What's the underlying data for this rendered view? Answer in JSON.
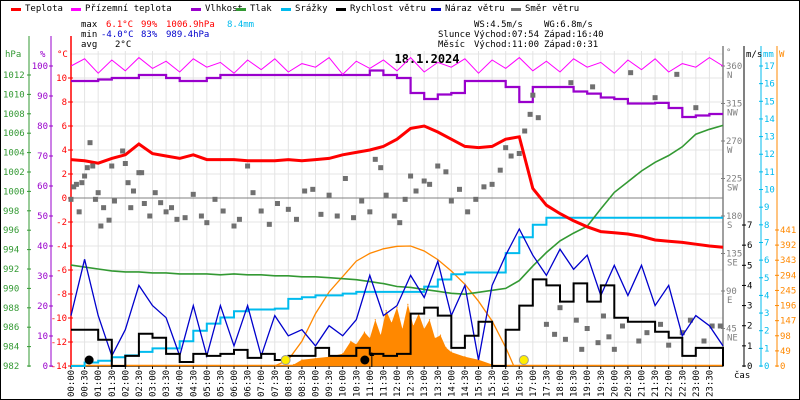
{
  "legend": [
    {
      "label": "Teplota",
      "color": "#ff0000"
    },
    {
      "label": "Přízemní teplota",
      "color": "#ff00ff"
    },
    {
      "label": "Vlhkost",
      "color": "#9900cc"
    },
    {
      "label": "Tlak",
      "color": "#339933"
    },
    {
      "label": "Srážky",
      "color": "#00bbee"
    },
    {
      "label": "Rychlost větru",
      "color": "#000000"
    },
    {
      "label": "Náraz větru",
      "color": "#0000cc"
    },
    {
      "label": "Směr větru",
      "color": "#707070"
    }
  ],
  "stats": {
    "max_label": "max",
    "min_label": "min",
    "avg_label": "avg",
    "max": {
      "temp": "6.1°C",
      "hum": "99%",
      "press": "1006.9hPa",
      "rain": "8.4mm"
    },
    "min": {
      "temp": "-4.0°C",
      "hum": "83%",
      "press": "989.4hPa"
    },
    "avg": {
      "temp": "2°C"
    }
  },
  "wind_stats": {
    "ws": "WS:4.5m/s",
    "wg": "WG:6.8m/s"
  },
  "sun": {
    "label": "Slunce",
    "rise": "Východ:07:54",
    "set": "Západ:16:40",
    "rise_h": 7.9,
    "set_h": 16.67
  },
  "moon": {
    "label": "Měsíc",
    "rise": "Východ:11:00",
    "set": "Západ:0:31",
    "rise_h": 11.0,
    "set_h": 0.52
  },
  "colors": {
    "temp": "#ff0000",
    "ground": "#ff00ff",
    "hum": "#9900cc",
    "press": "#339933",
    "rain": "#00bbee",
    "wind": "#000000",
    "gust": "#0000cc",
    "dir": "#707070",
    "solar": "#ff8800",
    "grid": "#e4e4e4"
  },
  "chart_data": {
    "type": "line",
    "title": "18.1.2024",
    "xlabel": "čas",
    "x_range_hours": [
      0,
      24
    ],
    "time_labels": [
      "00:00",
      "00:30",
      "01:00",
      "01:30",
      "02:00",
      "02:30",
      "03:00",
      "03:30",
      "04:00",
      "04:30",
      "05:00",
      "05:30",
      "06:00",
      "06:30",
      "07:00",
      "07:30",
      "08:00",
      "08:30",
      "09:00",
      "09:30",
      "10:00",
      "10:30",
      "11:00",
      "11:30",
      "12:00",
      "12:30",
      "13:00",
      "13:30",
      "14:00",
      "14:30",
      "15:00",
      "15:30",
      "16:00",
      "16:30",
      "17:00",
      "17:30",
      "18:00",
      "18:30",
      "19:00",
      "19:30",
      "20:00",
      "20:30",
      "21:00",
      "21:30",
      "22:00",
      "22:30",
      "23:00",
      "23:30"
    ],
    "axes": {
      "hpa": {
        "unit": "hPa",
        "range": [
          982,
          1012
        ],
        "ticks": [
          "982",
          "984",
          "986",
          "988",
          "990",
          "992",
          "994",
          "996",
          "998",
          "1000",
          "1002",
          "1004",
          "1006",
          "1008",
          "1010",
          "1012"
        ]
      },
      "pct": {
        "unit": "%",
        "range": [
          0,
          100
        ],
        "ticks": [
          "0",
          "10",
          "20",
          "30",
          "40",
          "50",
          "60",
          "70",
          "80",
          "90",
          "100"
        ]
      },
      "degc": {
        "unit": "°C",
        "range": [
          -14,
          10
        ],
        "ticks": [
          "-14",
          "-12",
          "-10",
          "-8",
          "-6",
          "-4",
          "-2",
          "0",
          "2",
          "4",
          "6",
          "8",
          "10"
        ]
      },
      "dir": {
        "unit": "°",
        "range": [
          0,
          360
        ],
        "ticks": [
          {
            "v": "45",
            "d": "NE"
          },
          {
            "v": "90",
            "d": "E"
          },
          {
            "v": "135",
            "d": "SE"
          },
          {
            "v": "180",
            "d": "S"
          },
          {
            "v": "225",
            "d": "SW"
          },
          {
            "v": "270",
            "d": "W"
          },
          {
            "v": "315",
            "d": "NW"
          },
          {
            "v": "360",
            "d": "N"
          }
        ]
      },
      "ms": {
        "unit": "m/s",
        "range": [
          0,
          7
        ],
        "ticks": [
          "0",
          "1",
          "2",
          "3",
          "4",
          "5",
          "6",
          "7"
        ]
      },
      "mm": {
        "unit": "mm",
        "range": [
          0,
          17
        ],
        "ticks": [
          "0",
          "1",
          "2",
          "3",
          "4",
          "5",
          "6",
          "7",
          "8",
          "9",
          "10",
          "11",
          "12",
          "13",
          "14",
          "15",
          "16",
          "17"
        ]
      },
      "w": {
        "unit": "W",
        "range": [
          0,
          441
        ],
        "ticks": [
          "0",
          "49",
          "98",
          "147",
          "196",
          "245",
          "294",
          "343",
          "392",
          "441"
        ]
      }
    },
    "x_step_hours": 0.5,
    "series": [
      {
        "name": "Teplota",
        "unit": "°C",
        "values": [
          3.2,
          3.1,
          2.9,
          3.3,
          3.6,
          4.5,
          3.7,
          3.5,
          3.3,
          3.6,
          3.2,
          3.2,
          3.2,
          3.1,
          3.1,
          3.1,
          3.2,
          3.1,
          3.2,
          3.3,
          3.6,
          3.8,
          4.0,
          4.3,
          4.9,
          5.8,
          6.0,
          5.5,
          4.9,
          4.3,
          4.2,
          4.3,
          4.9,
          5.1,
          0.8,
          -0.6,
          -1.3,
          -1.9,
          -2.4,
          -2.8,
          -2.9,
          -3.0,
          -3.2,
          -3.5,
          -3.6,
          -3.7,
          -3.85,
          -4.0,
          -4.1
        ]
      },
      {
        "name": "Přízemní teplota",
        "unit": "°C",
        "values": [
          11.0,
          11.6,
          10.4,
          11.5,
          10.6,
          11.7,
          10.8,
          11.4,
          10.5,
          11.6,
          10.9,
          11.3,
          10.4,
          11.5,
          10.7,
          11.6,
          10.5,
          11.2,
          10.9,
          11.7,
          10.3,
          11.4,
          10.8,
          11.5,
          10.6,
          11.7,
          10.5,
          11.3,
          10.9,
          11.6,
          10.4,
          11.5,
          10.8,
          11.7,
          10.6,
          11.4,
          10.5,
          11.6,
          10.9,
          11.3,
          10.4,
          11.5,
          10.7,
          11.6,
          10.5,
          11.2,
          10.9,
          11.7,
          11.0
        ]
      },
      {
        "name": "Vlhkost",
        "unit": "%",
        "values": [
          95,
          95,
          95.5,
          96,
          96,
          97,
          97,
          96,
          95,
          95,
          96,
          97,
          97,
          97,
          97,
          97,
          97,
          97,
          97,
          97,
          97,
          97,
          98.5,
          97,
          96,
          91,
          89,
          90.5,
          91,
          95,
          95,
          95,
          93,
          88,
          93,
          93,
          93,
          91.5,
          90.8,
          89.5,
          89,
          87.5,
          87.5,
          87.7,
          86,
          83,
          83.5,
          84,
          84
        ]
      },
      {
        "name": "Tlak",
        "unit": "hPa",
        "values": [
          992.4,
          992.2,
          992.0,
          991.8,
          991.7,
          991.7,
          991.6,
          991.6,
          991.5,
          991.5,
          991.5,
          991.4,
          991.5,
          991.4,
          991.4,
          991.3,
          991.3,
          991.2,
          991.2,
          991.1,
          991.0,
          990.9,
          990.7,
          990.5,
          990.2,
          990.1,
          989.9,
          989.7,
          989.5,
          989.4,
          989.6,
          989.8,
          990.0,
          990.8,
          992.3,
          993.7,
          994.9,
          995.7,
          996.4,
          998.2,
          999.9,
          1001.0,
          1002.1,
          1003.0,
          1003.7,
          1004.6,
          1005.9,
          1006.4,
          1006.8
        ]
      },
      {
        "name": "Srážky",
        "unit": "mm",
        "values": [
          0,
          0.2,
          0.3,
          0.5,
          0.6,
          0.8,
          1.0,
          1.0,
          1.4,
          2.0,
          2.4,
          2.75,
          3.1,
          3.2,
          3.2,
          3.25,
          3.8,
          3.9,
          4.0,
          4.0,
          4.1,
          4.2,
          4.2,
          4.2,
          4.2,
          4.2,
          4.5,
          4.9,
          5.2,
          5.3,
          5.3,
          5.3,
          6.4,
          7.3,
          8.0,
          8.4,
          8.4,
          8.4,
          8.4,
          8.4,
          8.4,
          8.4,
          8.4,
          8.4,
          8.4,
          8.4,
          8.4,
          8.4,
          8.4
        ]
      },
      {
        "name": "Rychlost větru",
        "unit": "m/s",
        "values": [
          1.8,
          1.8,
          1.3,
          0,
          0.5,
          1.6,
          1.4,
          0.6,
          0.2,
          0.6,
          0.5,
          0.6,
          0.8,
          0.4,
          0.6,
          0.3,
          0.5,
          0.5,
          0.9,
          0.5,
          0.5,
          0.9,
          0.6,
          0.5,
          0.6,
          2.6,
          2.9,
          2.5,
          0.9,
          1.5,
          2.2,
          0,
          1.8,
          3.0,
          4.3,
          4.0,
          3.2,
          4.1,
          3.2,
          4.0,
          2.4,
          2.2,
          2.2,
          1.7,
          1.4,
          0.5,
          0.9,
          0.9,
          0
        ]
      },
      {
        "name": "Náraz větru",
        "unit": "m/s",
        "values": [
          2.5,
          5.3,
          2.5,
          0.5,
          1.8,
          4.0,
          3.0,
          2.4,
          0.5,
          3.0,
          0.5,
          3.0,
          1.0,
          3.0,
          0.5,
          2.5,
          1.5,
          1.8,
          1.0,
          2.0,
          1.5,
          2.3,
          4.5,
          2.5,
          3.0,
          4.5,
          3.4,
          5.2,
          2.5,
          4.0,
          0.3,
          4.0,
          5.5,
          6.8,
          5.5,
          4.5,
          5.8,
          4.8,
          5.5,
          3.5,
          5.0,
          3.5,
          5.0,
          3.0,
          4.0,
          1.5,
          2.5,
          2.0,
          1.0
        ]
      }
    ],
    "solar_theoretical": {
      "unit": "W",
      "points": [
        [
          7.5,
          0
        ],
        [
          8,
          20
        ],
        [
          8.5,
          80
        ],
        [
          9,
          170
        ],
        [
          9.5,
          240
        ],
        [
          10,
          290
        ],
        [
          10.5,
          340
        ],
        [
          11,
          365
        ],
        [
          11.5,
          380
        ],
        [
          12,
          388
        ],
        [
          12.5,
          389
        ],
        [
          13,
          373
        ],
        [
          13.5,
          345
        ],
        [
          14,
          308
        ],
        [
          14.5,
          265
        ],
        [
          15,
          210
        ],
        [
          15.5,
          146
        ],
        [
          16,
          60
        ],
        [
          16.3,
          0
        ]
      ]
    },
    "solar_measured": {
      "unit": "W",
      "points": [
        [
          8,
          0
        ],
        [
          8.2,
          5
        ],
        [
          8.5,
          20
        ],
        [
          9,
          25
        ],
        [
          9.5,
          30
        ],
        [
          10,
          40
        ],
        [
          10.3,
          80
        ],
        [
          10.5,
          70
        ],
        [
          10.8,
          110
        ],
        [
          11,
          90
        ],
        [
          11.2,
          150
        ],
        [
          11.4,
          100
        ],
        [
          11.6,
          180
        ],
        [
          11.8,
          140
        ],
        [
          12,
          190
        ],
        [
          12.2,
          120
        ],
        [
          12.4,
          200
        ],
        [
          12.6,
          130
        ],
        [
          12.8,
          170
        ],
        [
          13,
          120
        ],
        [
          13.2,
          150
        ],
        [
          13.4,
          90
        ],
        [
          13.6,
          100
        ],
        [
          13.8,
          60
        ],
        [
          14,
          45
        ],
        [
          14.5,
          30
        ],
        [
          15,
          20
        ],
        [
          15.5,
          5
        ],
        [
          15.8,
          0
        ]
      ]
    },
    "wind_direction": {
      "unit": "°",
      "points": [
        [
          0.0,
          200
        ],
        [
          0.1,
          215
        ],
        [
          0.2,
          218
        ],
        [
          0.3,
          185
        ],
        [
          0.4,
          220
        ],
        [
          0.5,
          228
        ],
        [
          0.6,
          238
        ],
        [
          0.7,
          268
        ],
        [
          0.8,
          240
        ],
        [
          0.9,
          200
        ],
        [
          1.0,
          208
        ],
        [
          1.1,
          168
        ],
        [
          1.2,
          190
        ],
        [
          1.4,
          175
        ],
        [
          1.5,
          240
        ],
        [
          1.6,
          198
        ],
        [
          1.9,
          258
        ],
        [
          2.0,
          243
        ],
        [
          2.1,
          220
        ],
        [
          2.2,
          190
        ],
        [
          2.3,
          210
        ],
        [
          2.5,
          232
        ],
        [
          2.6,
          232
        ],
        [
          2.7,
          195
        ],
        [
          2.9,
          180
        ],
        [
          3.1,
          208
        ],
        [
          3.3,
          196
        ],
        [
          3.5,
          185
        ],
        [
          3.7,
          190
        ],
        [
          3.9,
          176
        ],
        [
          4.2,
          178
        ],
        [
          4.5,
          206
        ],
        [
          4.8,
          180
        ],
        [
          5.0,
          172
        ],
        [
          5.3,
          200
        ],
        [
          5.6,
          186
        ],
        [
          6.0,
          168
        ],
        [
          6.2,
          176
        ],
        [
          6.5,
          240
        ],
        [
          6.7,
          208
        ],
        [
          7.0,
          186
        ],
        [
          7.3,
          170
        ],
        [
          7.6,
          195
        ],
        [
          8.0,
          188
        ],
        [
          8.3,
          176
        ],
        [
          8.6,
          210
        ],
        [
          8.9,
          212
        ],
        [
          9.2,
          182
        ],
        [
          9.5,
          205
        ],
        [
          9.8,
          180
        ],
        [
          10.1,
          225
        ],
        [
          10.4,
          178
        ],
        [
          10.7,
          198
        ],
        [
          11.0,
          185
        ],
        [
          11.2,
          248
        ],
        [
          11.4,
          238
        ],
        [
          11.6,
          205
        ],
        [
          11.9,
          180
        ],
        [
          12.1,
          172
        ],
        [
          12.3,
          200
        ],
        [
          12.5,
          228
        ],
        [
          12.7,
          210
        ],
        [
          13.0,
          222
        ],
        [
          13.2,
          218
        ],
        [
          13.5,
          240
        ],
        [
          13.8,
          233
        ],
        [
          14.0,
          198
        ],
        [
          14.3,
          212
        ],
        [
          14.6,
          185
        ],
        [
          14.9,
          200
        ],
        [
          15.2,
          215
        ],
        [
          15.5,
          218
        ],
        [
          15.8,
          235
        ],
        [
          16.0,
          262
        ],
        [
          16.2,
          252
        ],
        [
          16.5,
          255
        ],
        [
          16.7,
          282
        ],
        [
          16.9,
          302
        ],
        [
          17.0,
          325
        ],
        [
          17.2,
          298
        ],
        [
          17.5,
          50
        ],
        [
          17.8,
          38
        ],
        [
          18.0,
          70
        ],
        [
          18.2,
          32
        ],
        [
          18.4,
          340
        ],
        [
          18.6,
          55
        ],
        [
          18.8,
          20
        ],
        [
          19.0,
          45
        ],
        [
          19.2,
          335
        ],
        [
          19.4,
          28
        ],
        [
          19.6,
          60
        ],
        [
          19.8,
          35
        ],
        [
          20.0,
          20
        ],
        [
          20.3,
          48
        ],
        [
          20.6,
          352
        ],
        [
          20.9,
          30
        ],
        [
          21.2,
          40
        ],
        [
          21.5,
          322
        ],
        [
          21.7,
          50
        ],
        [
          22.0,
          25
        ],
        [
          22.3,
          350
        ],
        [
          22.5,
          40
        ],
        [
          22.8,
          55
        ],
        [
          23.0,
          310
        ],
        [
          23.3,
          30
        ],
        [
          23.6,
          48
        ],
        [
          23.9,
          48
        ]
      ]
    }
  }
}
